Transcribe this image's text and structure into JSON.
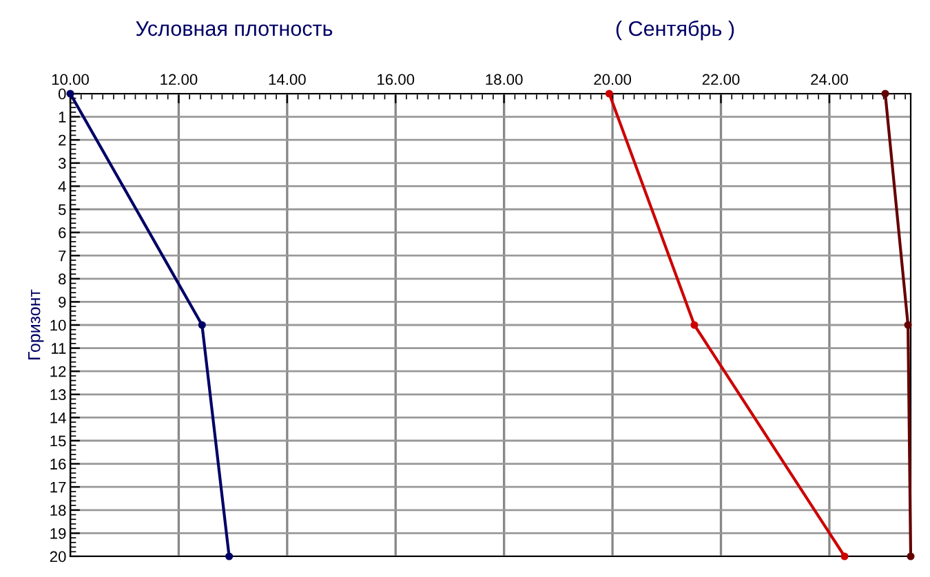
{
  "chart_data": {
    "type": "line",
    "title": "Условная плотность",
    "subtitle": "( Сентябрь )",
    "ylabel": "Горизонт",
    "xlim": [
      10,
      25.5
    ],
    "xticks": [
      {
        "value": 10,
        "label": "10.00"
      },
      {
        "value": 12,
        "label": "12.00"
      },
      {
        "value": 14,
        "label": "14.00"
      },
      {
        "value": 16,
        "label": "16.00"
      },
      {
        "value": 18,
        "label": "18.00"
      },
      {
        "value": 20,
        "label": "20.00"
      },
      {
        "value": 22,
        "label": "22.00"
      },
      {
        "value": 24,
        "label": "24.00"
      }
    ],
    "ylim": [
      20,
      0
    ],
    "yticks": [
      0,
      1,
      2,
      3,
      4,
      5,
      6,
      7,
      8,
      9,
      10,
      11,
      12,
      13,
      14,
      15,
      16,
      17,
      18,
      19,
      20
    ],
    "grid": true,
    "marker": "circle",
    "line_style": "solid",
    "series": [
      {
        "color": "#000066",
        "x": [
          10.0,
          12.43,
          12.93
        ],
        "values": [
          0,
          10,
          20
        ]
      },
      {
        "color": "#cc0000",
        "x": [
          19.94,
          21.51,
          24.28
        ],
        "values": [
          0,
          10,
          20
        ]
      },
      {
        "color": "#660000",
        "x": [
          25.03,
          25.45,
          25.5
        ],
        "values": [
          0,
          10,
          20
        ]
      }
    ]
  }
}
